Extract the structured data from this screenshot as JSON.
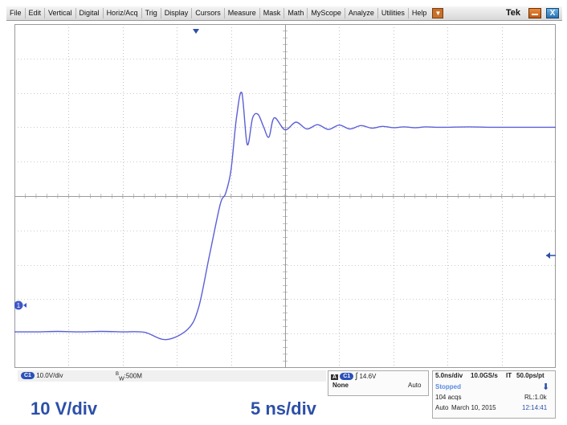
{
  "menu": {
    "items": [
      "File",
      "Edit",
      "Vertical",
      "Digital",
      "Horiz/Acq",
      "Trig",
      "Display",
      "Cursors",
      "Measure",
      "Mask",
      "Math",
      "MyScope",
      "Analyze",
      "Utilities",
      "Help"
    ],
    "brand": "Tek",
    "close_label": "X"
  },
  "channel": {
    "id": "C1",
    "scale": "10.0V/div",
    "bandwidth_prefix": "B",
    "bandwidth_sub": "W",
    "bandwidth": ":500M"
  },
  "trigger": {
    "source_letter": "A",
    "source": "C1",
    "edge_symbol": "∫",
    "level": "14.6V",
    "coupling": "None",
    "mode": "Auto"
  },
  "acquisition": {
    "timebase": "5.0ns/div",
    "sample_rate": "10.0GS/s",
    "interp": "IT",
    "resolution": "50.0ps/pt",
    "status": "Stopped",
    "acqs": "104 acqs",
    "record_length": "RL:1.0k",
    "mode": "Auto",
    "date": "March 10, 2015",
    "time": "12:14:41",
    "down_arrow": "⬇"
  },
  "annotations": {
    "vertical_scale": "10 V/div",
    "horizontal_scale": "5 ns/div"
  },
  "markers": {
    "channel_ref": "1"
  },
  "colors": {
    "trace": "#5b5fd6",
    "grid": "#9a9a9a",
    "accent": "#2c4fa8"
  },
  "chart_data": {
    "type": "line",
    "title": "",
    "xlabel": "",
    "ylabel": "",
    "x_unit": "ns",
    "y_unit": "V",
    "xlim": [
      0,
      50
    ],
    "ylim": [
      -40,
      40
    ],
    "grid": true,
    "series": [
      {
        "x": [
          0,
          2,
          4,
          6,
          8,
          10,
          12,
          14,
          16,
          17,
          18,
          19,
          19.5,
          20,
          20.5,
          21,
          21.5,
          22,
          22.5,
          23,
          23.5,
          24,
          25,
          26,
          27,
          28,
          29,
          30,
          31,
          32,
          33,
          34,
          35,
          36,
          37,
          38,
          39,
          40,
          42,
          44,
          46,
          48,
          50
        ],
        "y": [
          -31.6,
          -31.6,
          -31.5,
          -31.6,
          -31.5,
          -31.6,
          -31.7,
          -33.4,
          -31.0,
          -26.0,
          -14.0,
          -2.0,
          0.6,
          6.0,
          18.0,
          24.0,
          12.0,
          18.2,
          19.0,
          16.2,
          13.7,
          18.2,
          15.4,
          17.2,
          15.6,
          16.6,
          15.5,
          16.5,
          15.6,
          16.4,
          15.8,
          16.2,
          15.9,
          16.1,
          15.9,
          16.1,
          16.0,
          16.0,
          16.1,
          16.0,
          16.0,
          16.0,
          16.0
        ]
      }
    ]
  }
}
